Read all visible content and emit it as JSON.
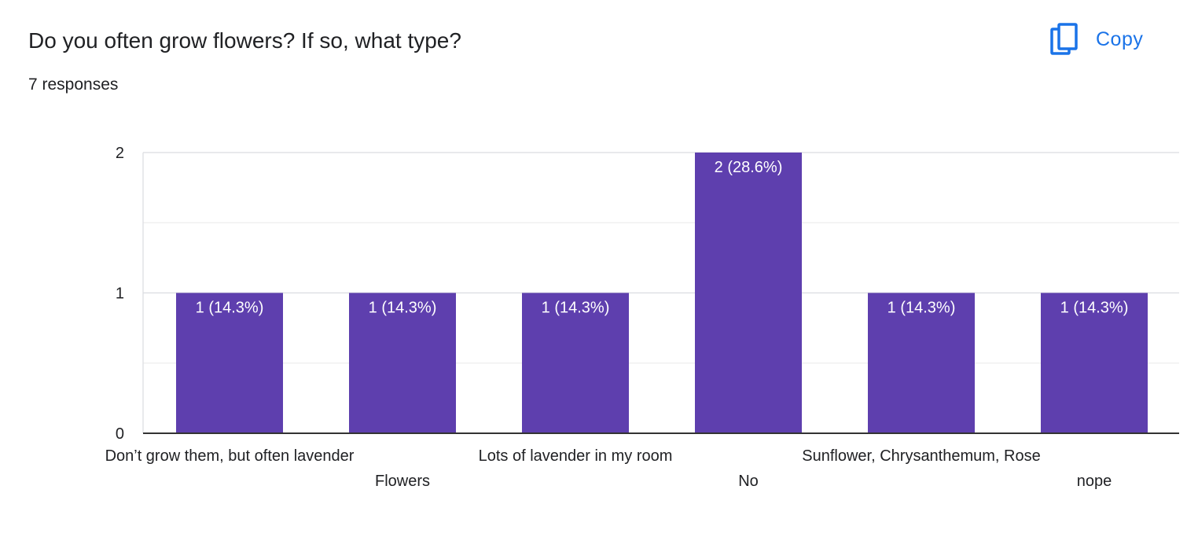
{
  "header": {
    "title": "Do you often grow flowers? If so, what type?",
    "responses": "7 responses",
    "copy_label": "Copy",
    "copy_icon": "copy-icon",
    "accent_color": "#1a73e8"
  },
  "chart_data": {
    "type": "bar",
    "title": "Do you often grow flowers? If so, what type?",
    "xlabel": "",
    "ylabel": "",
    "ylim": [
      0,
      2
    ],
    "yticks": [
      "0",
      "1",
      "2"
    ],
    "grid": true,
    "bar_color": "#5e3fae",
    "categories": [
      "Don’t grow them, but often lavender",
      "Flowers",
      "Lots of lavender in my room",
      "No",
      "Sunflower,  Chrysanthemum,  Rose",
      "nope"
    ],
    "values": [
      1,
      1,
      1,
      2,
      1,
      1
    ],
    "data_labels": [
      "1 (14.3%)",
      "1 (14.3%)",
      "1 (14.3%)",
      "2 (28.6%)",
      "1 (14.3%)",
      "1 (14.3%)"
    ]
  }
}
